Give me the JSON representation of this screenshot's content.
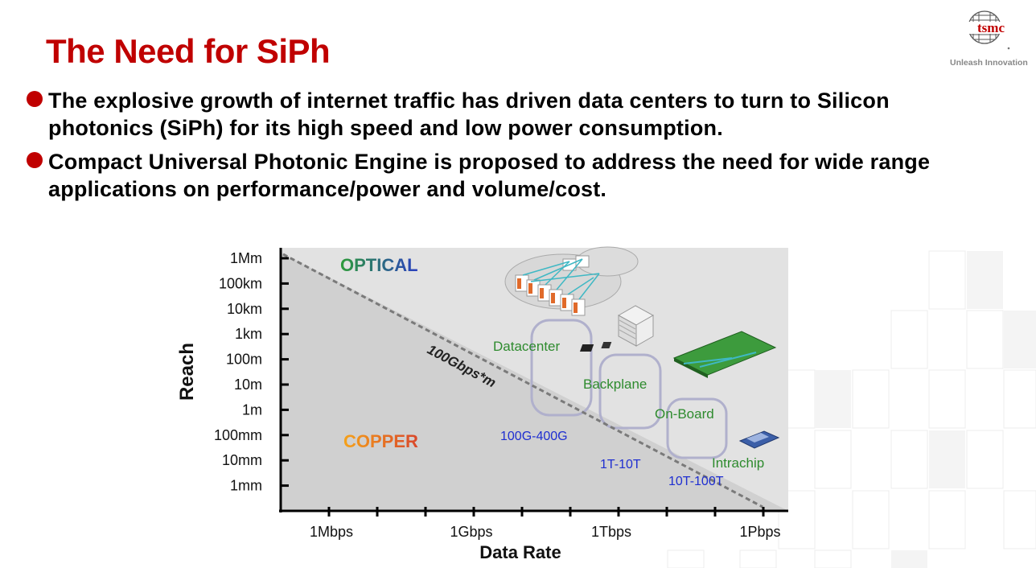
{
  "slide": {
    "title": "The Need for SiPh",
    "logo_text": "tsmc",
    "tagline": "Unleash Innovation",
    "bullets": [
      "The explosive growth of internet traffic has driven data centers to turn to Silicon photonics (SiPh) for its high speed and low power consumption.",
      "Compact Universal Photonic Engine is proposed to address the need for wide range applications on performance/power and volume/cost."
    ],
    "colors": {
      "title": "#c00000",
      "bullet_dot": "#c00000"
    }
  },
  "chart_data": {
    "type": "diagram",
    "ylabel": "Reach",
    "xlabel": "Data Rate",
    "y_ticks": [
      "1Mm",
      "100km",
      "10km",
      "1km",
      "100m",
      "10m",
      "1m",
      "100mm",
      "10mm",
      "1mm"
    ],
    "x_ticks": [
      "1Mbps",
      "1Gbps",
      "1Tbps",
      "1Pbps"
    ],
    "regions": [
      {
        "label": "OPTICAL",
        "colors": [
          "#2e9c3a",
          "#2a3fbf"
        ]
      },
      {
        "label": "COPPER",
        "colors": [
          "#f5a21a",
          "#d9472b"
        ]
      }
    ],
    "boundary_label": "100Gbps*m",
    "applications": [
      {
        "name": "Datacenter",
        "rate": "100G-400G",
        "icon": "server-cluster-icon"
      },
      {
        "name": "Backplane",
        "rate": "1T-10T",
        "icon": "server-rack-icon"
      },
      {
        "name": "On-Board",
        "rate": "10T-100T",
        "icon": "circuit-board-icon"
      },
      {
        "name": "Intrachip",
        "rate": "",
        "icon": "chip-icon"
      }
    ],
    "colors": {
      "application": "#2e8b2e",
      "rate": "#1f2fd1",
      "boundary": "#777777",
      "region_fill": "#d4d4d4"
    }
  }
}
